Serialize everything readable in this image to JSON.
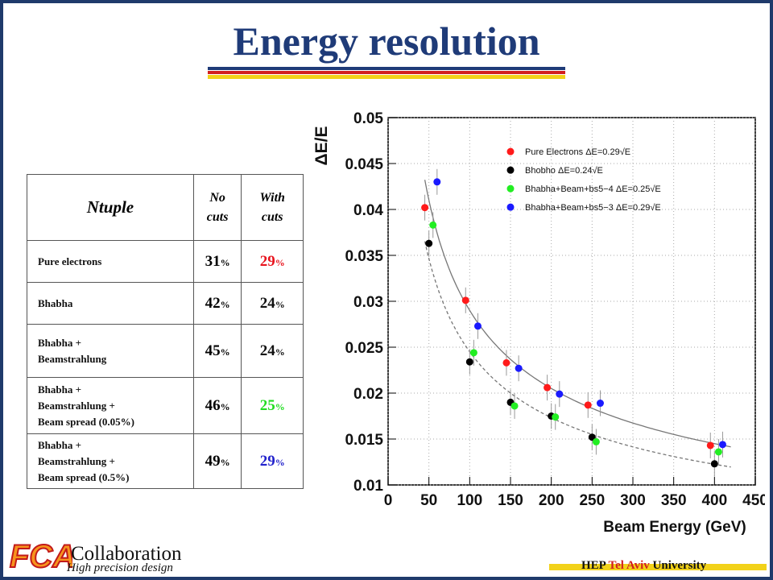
{
  "title": "Energy resolution",
  "table": {
    "header": {
      "c1": "Ntuple",
      "c2a": "No",
      "c2b": "cuts",
      "c3a": "With",
      "c3b": "cuts"
    },
    "rows": [
      {
        "l1": "Pure electrons",
        "l2": "",
        "l3": "",
        "no_cuts": "31",
        "with_cuts": "29",
        "color": "#e8141e"
      },
      {
        "l1": "Bhabha",
        "l2": "",
        "l3": "",
        "no_cuts": "42",
        "with_cuts": "24",
        "color": "#111111"
      },
      {
        "l1": "Bhabha +",
        "l2": "Beamstrahlung",
        "l3": "",
        "no_cuts": "45",
        "with_cuts": "24",
        "color": "#111111"
      },
      {
        "l1": "Bhabha +",
        "l2": "Beamstrahlung  +",
        "l3": "Beam spread (0.05%)",
        "no_cuts": "46",
        "with_cuts": "25",
        "color": "#22dd22"
      },
      {
        "l1": "Bhabha +",
        "l2": "Beamstrahlung  +",
        "l3": "Beam spread (0.5%)",
        "no_cuts": "49",
        "with_cuts": "29",
        "color": "#2222cc"
      }
    ],
    "unit": "%"
  },
  "chart_data": {
    "type": "scatter",
    "xlabel": "Beam Energy (GeV)",
    "ylabel": "ΔE/E",
    "xlim": [
      0,
      450
    ],
    "ylim": [
      0.01,
      0.05
    ],
    "xticks": [
      "0",
      "50",
      "100",
      "150",
      "200",
      "250",
      "300",
      "350",
      "400",
      "450"
    ],
    "yticks": [
      "0.01",
      "0.015",
      "0.02",
      "0.025",
      "0.03",
      "0.035",
      "0.04",
      "0.045",
      "0.05"
    ],
    "grid": true,
    "legend_position": "top-right",
    "series": [
      {
        "name": "Pure Electrons ΔE=0.29√E",
        "color": "#ff1a1a",
        "points": [
          [
            45,
            0.0402
          ],
          [
            95,
            0.0301
          ],
          [
            145,
            0.0233
          ],
          [
            195,
            0.0206
          ],
          [
            245,
            0.0187
          ],
          [
            395,
            0.0143
          ]
        ]
      },
      {
        "name": "Bhobho ΔE=0.24√E",
        "color": "#000000",
        "points": [
          [
            50,
            0.0363
          ],
          [
            100,
            0.0234
          ],
          [
            150,
            0.019
          ],
          [
            200,
            0.0175
          ],
          [
            250,
            0.0152
          ],
          [
            400,
            0.0123
          ]
        ]
      },
      {
        "name": "Bhabha+Beam+bs5−4 ΔE=0.25√E",
        "color": "#22ee22",
        "points": [
          [
            55,
            0.0383
          ],
          [
            105,
            0.0244
          ],
          [
            155,
            0.0186
          ],
          [
            205,
            0.0174
          ],
          [
            255,
            0.0147
          ],
          [
            405,
            0.0136
          ]
        ]
      },
      {
        "name": "Bhabha+Beam+bs5−3 ΔE=0.29√E",
        "color": "#1a1aff",
        "points": [
          [
            60,
            0.043
          ],
          [
            110,
            0.0273
          ],
          [
            160,
            0.0227
          ],
          [
            210,
            0.0199
          ],
          [
            260,
            0.0189
          ],
          [
            410,
            0.0144
          ]
        ]
      }
    ],
    "fits": [
      {
        "style": "solid",
        "a": 0.29
      },
      {
        "style": "dashed",
        "a": 0.245
      }
    ]
  },
  "footer": {
    "logo_text": "FCAL",
    "collab": "Collaboration",
    "tagline": "High precision design",
    "inst_hep": "HEP ",
    "inst_tau": "Tel Aviv",
    "inst_univ": " University"
  }
}
